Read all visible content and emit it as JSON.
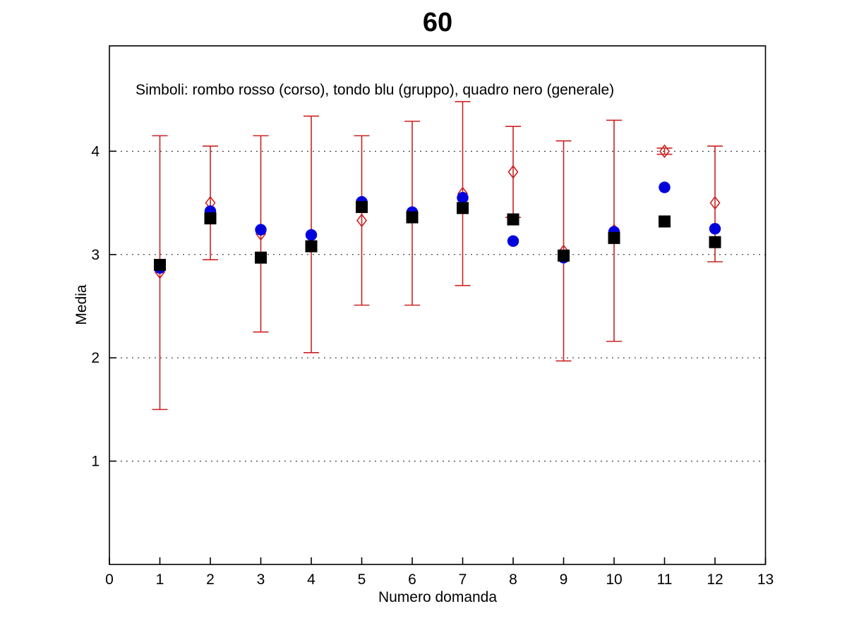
{
  "figure": {
    "background": "#ffffff"
  },
  "chart_data": {
    "type": "scatter",
    "title": "60",
    "annotation": "Simboli: rombo rosso (corso), tondo blu (gruppo), quadro nero (generale)",
    "xlabel": "Numero domanda",
    "ylabel": "Media",
    "xlim": [
      0,
      13
    ],
    "ylim": [
      0,
      5.02
    ],
    "xticks": [
      0,
      1,
      2,
      3,
      4,
      5,
      6,
      7,
      8,
      9,
      10,
      11,
      12,
      13
    ],
    "yticks": [
      1,
      2,
      3,
      4
    ],
    "grid": "horizontal-dotted-black",
    "legend_position": "text-annotation-top-left",
    "x": [
      1,
      2,
      3,
      4,
      5,
      6,
      7,
      8,
      9,
      10,
      11,
      12
    ],
    "series": [
      {
        "name": "corso",
        "marker": "open-diamond",
        "color": "#cc2222",
        "errorbars": true,
        "values": [
          2.83,
          3.5,
          3.2,
          3.19,
          3.33,
          3.4,
          3.59,
          3.8,
          3.03,
          3.23,
          4.0,
          3.5
        ],
        "err_low": [
          1.5,
          2.95,
          2.25,
          2.05,
          2.51,
          2.51,
          2.7,
          3.36,
          1.97,
          2.16,
          3.97,
          2.93
        ],
        "err_high": [
          4.15,
          4.05,
          4.15,
          4.34,
          4.15,
          4.29,
          4.48,
          4.24,
          4.1,
          4.3,
          4.03,
          4.05
        ]
      },
      {
        "name": "gruppo",
        "marker": "filled-circle",
        "color": "#0000dd",
        "errorbars": false,
        "values": [
          2.87,
          3.42,
          3.24,
          3.19,
          3.51,
          3.41,
          3.55,
          3.13,
          2.97,
          3.22,
          3.65,
          3.25
        ]
      },
      {
        "name": "generale",
        "marker": "filled-square",
        "color": "#000000",
        "errorbars": false,
        "values": [
          2.9,
          3.35,
          2.97,
          3.08,
          3.46,
          3.36,
          3.45,
          3.34,
          2.99,
          3.16,
          3.32,
          3.12
        ]
      }
    ]
  }
}
